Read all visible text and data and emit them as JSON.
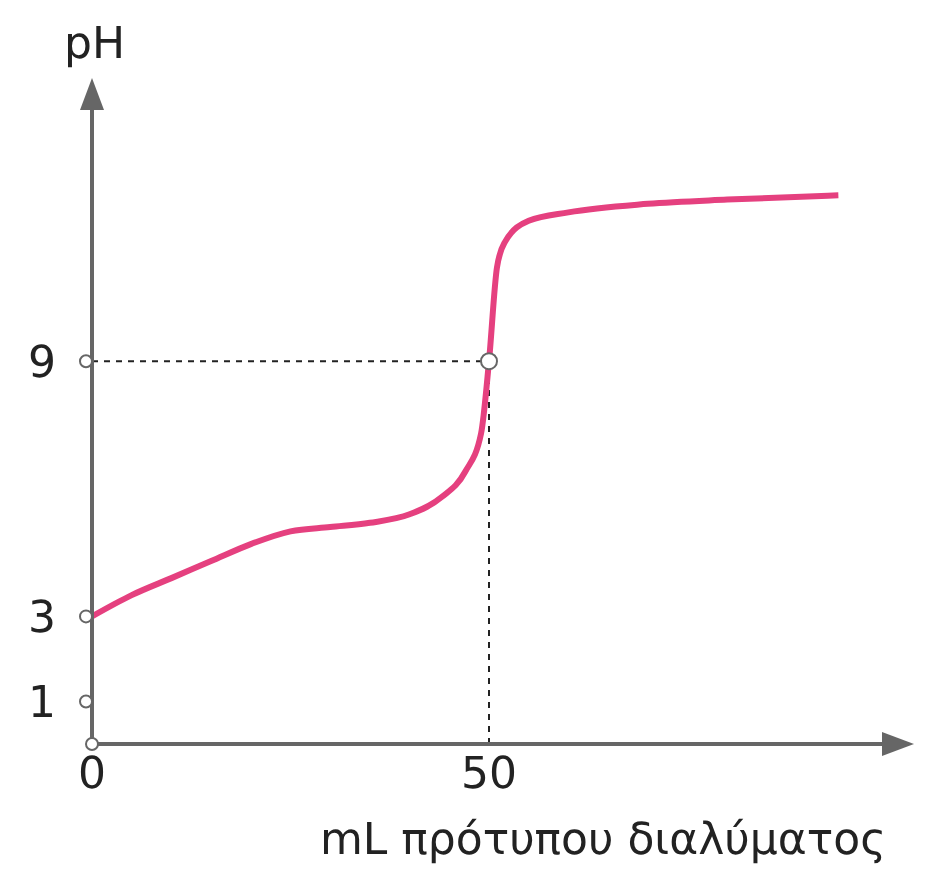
{
  "chart_data": {
    "type": "line",
    "xlabel": "mL πρότυπου διαλύματος",
    "ylabel": "pH",
    "x": [
      0,
      5,
      10,
      15,
      20,
      25,
      30,
      35,
      40,
      44,
      47,
      49,
      50,
      51,
      52,
      55,
      60,
      70,
      80,
      94
    ],
    "series": [
      {
        "color": "#e5407f",
        "values": [
          3,
          3.5,
          3.9,
          4.3,
          4.7,
          5.0,
          5.1,
          5.2,
          5.4,
          5.8,
          6.4,
          7.3,
          9,
          11.2,
          11.8,
          12.3,
          12.5,
          12.7,
          12.8,
          12.9
        ]
      }
    ],
    "xlim": [
      0,
      100
    ],
    "ylim": [
      0,
      15
    ],
    "xticks": [
      0,
      50
    ],
    "yticks": [
      1,
      3,
      9
    ],
    "ref_lines": [
      {
        "axis": "x",
        "value": 50,
        "line_style": "dashed",
        "color": "#222222"
      },
      {
        "axis": "y",
        "value": 9,
        "line_style": "dashed",
        "color": "#222222"
      }
    ],
    "marker": "none",
    "line_style": "solid"
  }
}
